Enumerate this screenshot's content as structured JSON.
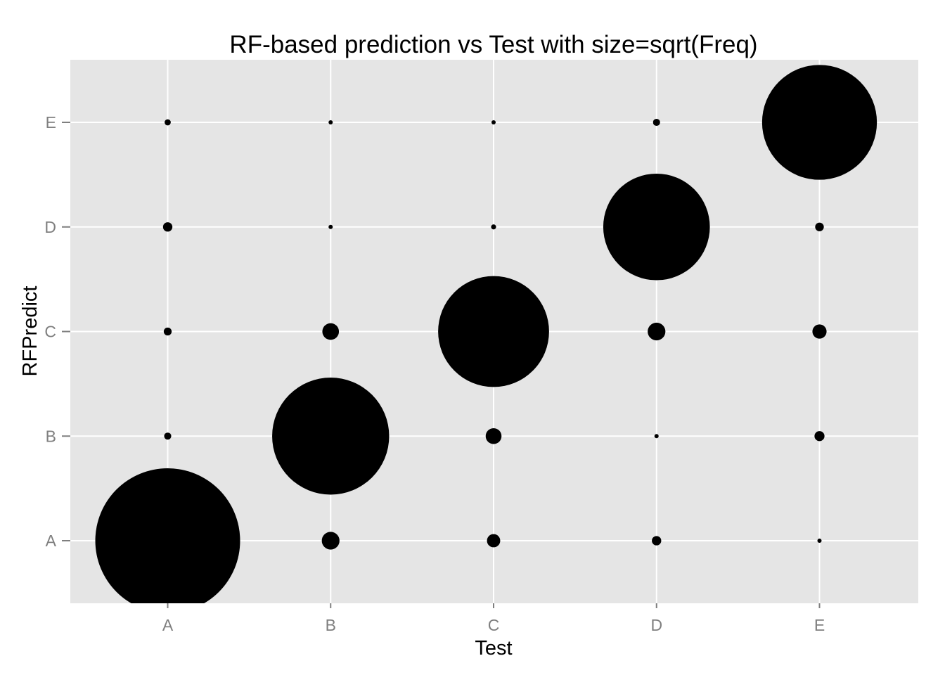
{
  "chart_data": {
    "type": "scatter",
    "title": "RF-based prediction vs Test with size=sqrt(Freq)",
    "xlabel": "Test",
    "ylabel": "RFPredict",
    "x_categories": [
      "A",
      "B",
      "C",
      "D",
      "E"
    ],
    "y_categories": [
      "A",
      "B",
      "C",
      "D",
      "E"
    ],
    "size_encoding": "sqrt(Freq)",
    "grid": true,
    "legend": "none",
    "colors": {
      "panel_background": "#e5e5e5",
      "grid": "#ffffff",
      "points": "#000000",
      "tick_labels": "#7f7f7f"
    },
    "points": [
      {
        "x": "A",
        "y": "A",
        "freq": 1670
      },
      {
        "x": "A",
        "y": "B",
        "freq": 4
      },
      {
        "x": "A",
        "y": "C",
        "freq": 5
      },
      {
        "x": "A",
        "y": "D",
        "freq": 7
      },
      {
        "x": "A",
        "y": "E",
        "freq": 3
      },
      {
        "x": "B",
        "y": "A",
        "freq": 25
      },
      {
        "x": "B",
        "y": "B",
        "freq": 1090
      },
      {
        "x": "B",
        "y": "C",
        "freq": 22
      },
      {
        "x": "B",
        "y": "D",
        "freq": 1
      },
      {
        "x": "B",
        "y": "E",
        "freq": 0
      },
      {
        "x": "C",
        "y": "A",
        "freq": 14
      },
      {
        "x": "C",
        "y": "B",
        "freq": 20
      },
      {
        "x": "C",
        "y": "C",
        "freq": 980
      },
      {
        "x": "C",
        "y": "D",
        "freq": 2
      },
      {
        "x": "C",
        "y": "E",
        "freq": 0.1
      },
      {
        "x": "D",
        "y": "A",
        "freq": 7
      },
      {
        "x": "D",
        "y": "B",
        "freq": 0.5
      },
      {
        "x": "D",
        "y": "C",
        "freq": 25
      },
      {
        "x": "D",
        "y": "D",
        "freq": 905
      },
      {
        "x": "D",
        "y": "E",
        "freq": 4
      },
      {
        "x": "E",
        "y": "A",
        "freq": 0.5
      },
      {
        "x": "E",
        "y": "B",
        "freq": 8
      },
      {
        "x": "E",
        "y": "C",
        "freq": 16
      },
      {
        "x": "E",
        "y": "D",
        "freq": 6
      },
      {
        "x": "E",
        "y": "E",
        "freq": 1050
      }
    ]
  }
}
